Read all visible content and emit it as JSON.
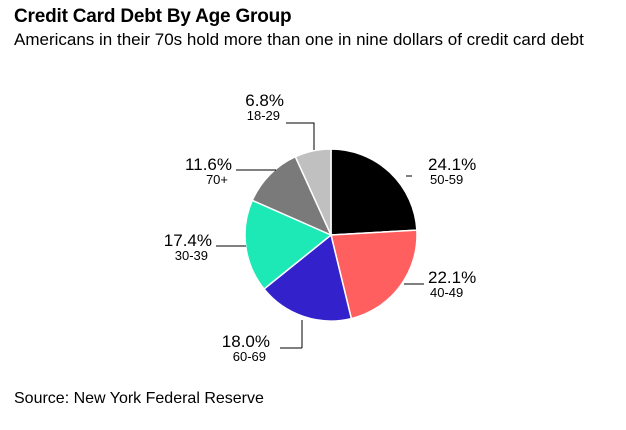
{
  "header": {
    "title": "Credit Card Debt By Age Group",
    "subtitle": "Americans in their 70s hold more than one in nine dollars of credit card debt"
  },
  "footer": {
    "source": "Source: New York Federal Reserve"
  },
  "chart_data": {
    "type": "pie",
    "title": "Credit Card Debt By Age Group",
    "slices": [
      {
        "category": "50-59",
        "label": "24.1%",
        "value": 24.1,
        "color": "#000000"
      },
      {
        "category": "40-49",
        "label": "22.1%",
        "value": 22.1,
        "color": "#ff5f5f"
      },
      {
        "category": "60-69",
        "label": "18.0%",
        "value": 18.0,
        "color": "#3322cc"
      },
      {
        "category": "30-39",
        "label": "17.4%",
        "value": 17.4,
        "color": "#1de9b6"
      },
      {
        "category": "70+",
        "label": "11.6%",
        "value": 11.6,
        "color": "#7a7a7a"
      },
      {
        "category": "18-29",
        "label": "6.8%",
        "value": 6.8,
        "color": "#c0c0c0"
      }
    ]
  }
}
